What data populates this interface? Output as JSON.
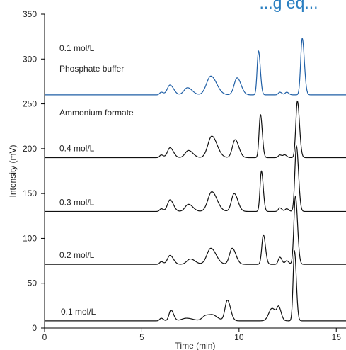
{
  "chart_data": {
    "type": "line",
    "title_partial": "...g eq...",
    "xlabel": "Time (min)",
    "ylabel": "Intensity (mV)",
    "xlim": [
      0,
      15.5
    ],
    "ylim": [
      0,
      350
    ],
    "x_ticks": [
      0,
      5,
      10,
      15
    ],
    "y_ticks": [
      0,
      50,
      100,
      150,
      200,
      250,
      300,
      350
    ],
    "grid": false,
    "colors": {
      "phosphate": "#1f5fa6",
      "formate": "#111111"
    },
    "annotations": {
      "phosphate_conc": "0.1 mol/L",
      "phosphate_name": "Phosphate buffer",
      "formate_name": "Ammonium formate"
    },
    "series": [
      {
        "name": "0.1 mol/L",
        "label": "0.1 mol/L",
        "baseline": 260,
        "color": "#1f5fa6",
        "peaks": [
          [
            6.0,
            3,
            0.08
          ],
          [
            6.45,
            11,
            0.14
          ],
          [
            7.35,
            8,
            0.18
          ],
          [
            8.55,
            21,
            0.22
          ],
          [
            9.9,
            19,
            0.15
          ],
          [
            11.0,
            49,
            0.07
          ],
          [
            12.1,
            3,
            0.08
          ],
          [
            12.45,
            3,
            0.08
          ],
          [
            13.25,
            63,
            0.08
          ]
        ]
      },
      {
        "name": "0.4 mol/L",
        "label": "0.4 mol/L",
        "baseline": 190,
        "color": "#111111",
        "peaks": [
          [
            6.0,
            3,
            0.08
          ],
          [
            6.45,
            11,
            0.13
          ],
          [
            7.4,
            8,
            0.17
          ],
          [
            8.6,
            24,
            0.2
          ],
          [
            9.8,
            20,
            0.14
          ],
          [
            11.1,
            48,
            0.07
          ],
          [
            12.1,
            3,
            0.08
          ],
          [
            12.35,
            3,
            0.08
          ],
          [
            13.0,
            63,
            0.08
          ]
        ]
      },
      {
        "name": "0.3 mol/L",
        "label": "0.3 mol/L",
        "baseline": 130,
        "color": "#111111",
        "peaks": [
          [
            6.0,
            3,
            0.08
          ],
          [
            6.45,
            13,
            0.13
          ],
          [
            7.4,
            8,
            0.17
          ],
          [
            8.6,
            22,
            0.2
          ],
          [
            9.75,
            20,
            0.14
          ],
          [
            11.15,
            45,
            0.07
          ],
          [
            12.1,
            4,
            0.08
          ],
          [
            12.45,
            3,
            0.08
          ],
          [
            12.95,
            73,
            0.08
          ]
        ]
      },
      {
        "name": "0.2 mol/L",
        "label": "0.2 mol/L",
        "baseline": 71,
        "color": "#111111",
        "peaks": [
          [
            6.0,
            3,
            0.08
          ],
          [
            6.45,
            10,
            0.13
          ],
          [
            7.5,
            6,
            0.18
          ],
          [
            8.55,
            18,
            0.2
          ],
          [
            9.65,
            18,
            0.14
          ],
          [
            11.25,
            33,
            0.08
          ],
          [
            12.1,
            8,
            0.08
          ],
          [
            12.45,
            4,
            0.08
          ],
          [
            12.9,
            76,
            0.08
          ]
        ]
      },
      {
        "name": "0.1 mol/L",
        "label": "0.1 mol/L",
        "baseline": 8,
        "color": "#111111",
        "peaks": [
          [
            6.0,
            3,
            0.08
          ],
          [
            6.5,
            12,
            0.1
          ],
          [
            7.3,
            3,
            0.25
          ],
          [
            8.3,
            6,
            0.18
          ],
          [
            8.7,
            5,
            0.18
          ],
          [
            9.4,
            23,
            0.12
          ],
          [
            11.7,
            14,
            0.17
          ],
          [
            12.05,
            12,
            0.09
          ],
          [
            12.85,
            78,
            0.07
          ]
        ]
      }
    ]
  }
}
